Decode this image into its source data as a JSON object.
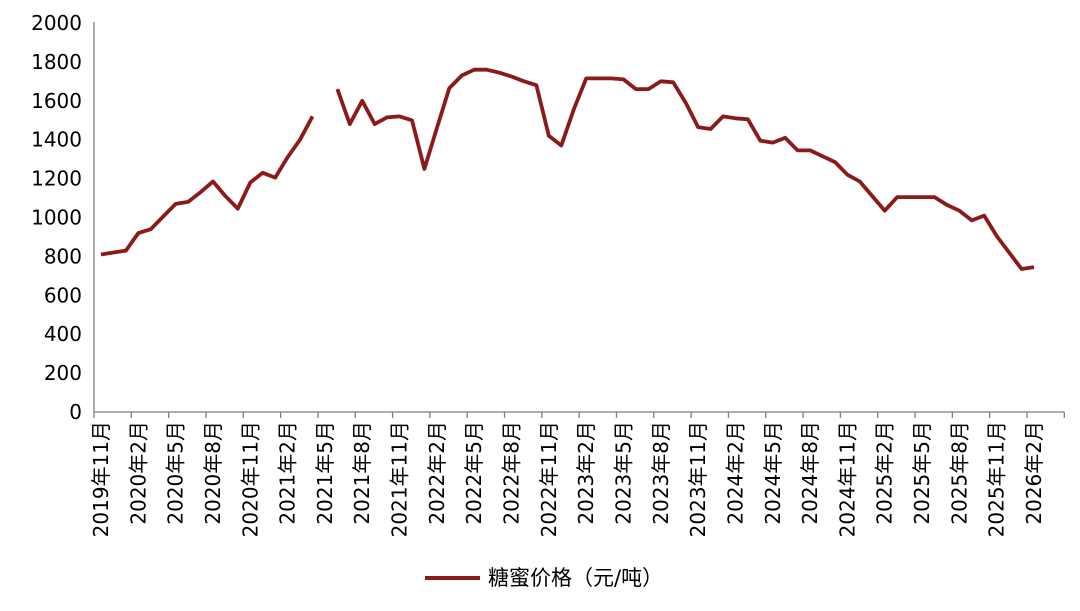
{
  "chart_data": {
    "type": "line",
    "title": "",
    "legend": {
      "label": "糖蜜价格（元/吨）",
      "position": "bottom-center"
    },
    "series": [
      {
        "name": "糖蜜价格（元/吨）",
        "color": "#8B1A1A",
        "start_month": "2019年11月",
        "end_month": "2026年2月",
        "frequency": "monthly",
        "values": [
          810,
          820,
          830,
          920,
          940,
          1005,
          1070,
          1080,
          1130,
          1185,
          1110,
          1045,
          1180,
          1230,
          1205,
          1310,
          1400,
          1520,
          null,
          1660,
          1480,
          1600,
          1480,
          1515,
          1520,
          1500,
          1250,
          1460,
          1665,
          1730,
          1760,
          1760,
          1745,
          1725,
          1700,
          1680,
          1420,
          1370,
          1555,
          1715,
          1715,
          1715,
          1710,
          1660,
          1660,
          1700,
          1695,
          1590,
          1465,
          1455,
          1520,
          1510,
          1505,
          1395,
          1385,
          1410,
          1345,
          1345,
          1315,
          1285,
          1220,
          1185,
          1110,
          1035,
          1105,
          1105,
          1105,
          1105,
          1065,
          1035,
          985,
          1010,
          905,
          820,
          735,
          745
        ]
      }
    ],
    "x_axis": {
      "tick_labels": [
        "2019年11月",
        "2020年2月",
        "2020年5月",
        "2020年8月",
        "2020年11月",
        "2021年2月",
        "2021年5月",
        "2021年8月",
        "2021年11月",
        "2022年2月",
        "2022年5月",
        "2022年8月",
        "2022年11月",
        "2023年2月",
        "2023年5月",
        "2023年8月",
        "2023年11月",
        "2024年2月",
        "2024年5月",
        "2024年8月",
        "2024年11月",
        "2025年2月",
        "2025年5月",
        "2025年8月",
        "2025年11月",
        "2026年2月"
      ],
      "label_interval_months": 3
    },
    "y_axis": {
      "min": 0,
      "max": 2000,
      "tick_step": 200,
      "tick_labels": [
        "0",
        "200",
        "400",
        "600",
        "800",
        "1000",
        "1200",
        "1400",
        "1600",
        "1800",
        "2000"
      ]
    },
    "grid": "off",
    "colors": {
      "line": "#8B1A1A",
      "axis": "#7F7F7F",
      "text": "#000000",
      "background": "#FFFFFF"
    }
  }
}
